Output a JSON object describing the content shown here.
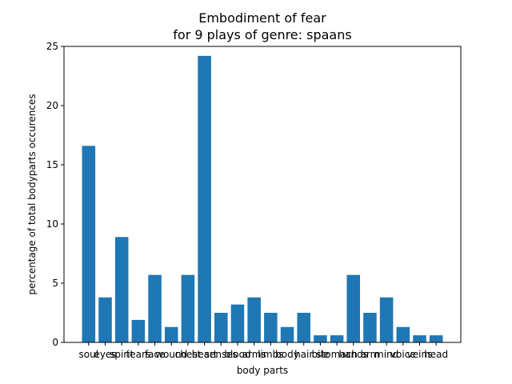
{
  "chart_data": {
    "type": "bar",
    "title_line1": "Embodiment of fear",
    "title_line2": "for 9 plays of genre: spaans",
    "xlabel": "body parts",
    "ylabel": "percentage of total bodyparts occurences",
    "ylim": [
      0,
      25
    ],
    "yticks": [
      0,
      5,
      10,
      15,
      20,
      25
    ],
    "categories": [
      "soul",
      "eyes",
      "spirit",
      "tears",
      "face",
      "wound",
      "chest",
      "heart",
      "senses",
      "blood",
      "arms",
      "limbs",
      "body",
      "hair",
      "bile",
      "stomach",
      "hands",
      "arm",
      "mind",
      "voice",
      "veins",
      "head"
    ],
    "values": [
      16.6,
      3.8,
      8.9,
      1.9,
      5.7,
      1.3,
      5.7,
      24.2,
      2.5,
      3.2,
      3.8,
      2.5,
      1.3,
      2.5,
      0.6,
      0.6,
      5.7,
      2.5,
      3.8,
      1.3,
      0.6,
      0.6
    ],
    "bar_color": "#1f77b4",
    "grid": false,
    "legend": "none"
  }
}
